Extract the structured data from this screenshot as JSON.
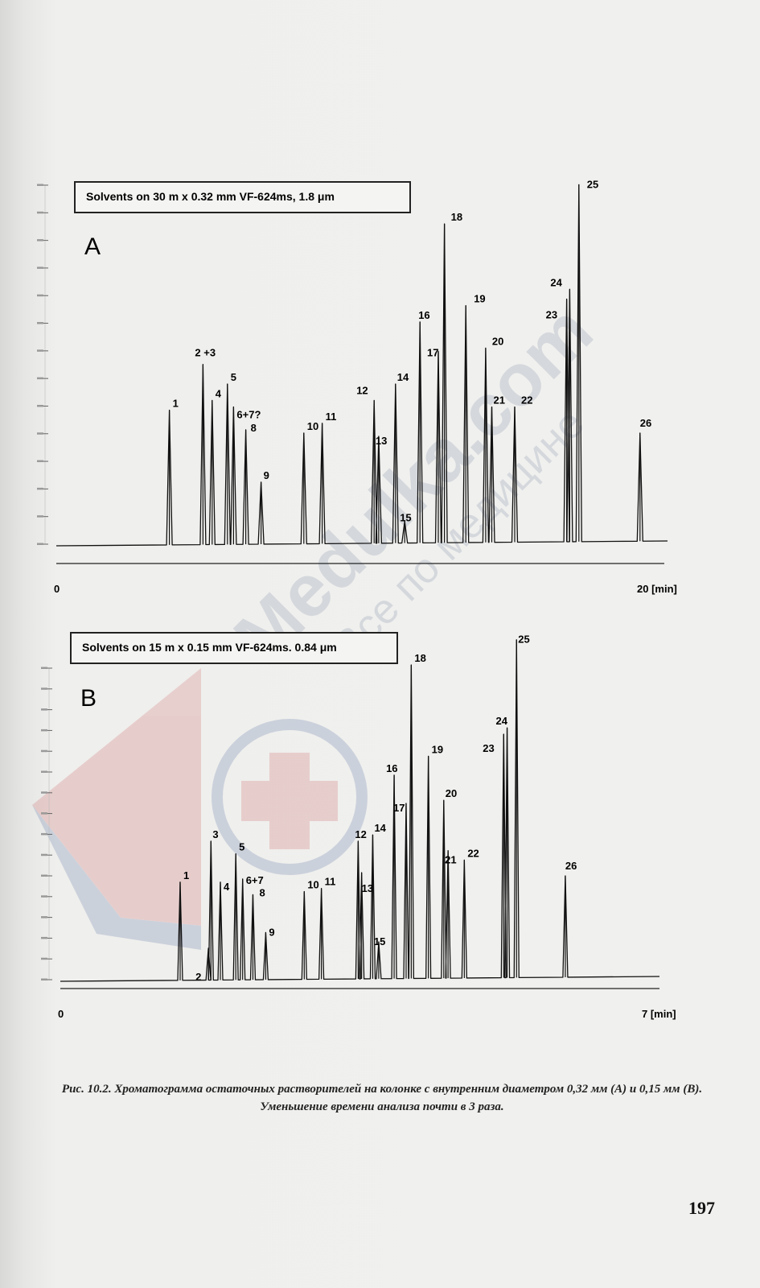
{
  "page": {
    "caption": "Рис. 10.2. Хроматограмма остаточных растворителей на колонке с внутренним диаметром 0,32 мм (А) и 0,15 мм (В). Уменьшение времени анализа почти в 3 раза.",
    "page_number": "197",
    "watermark_text_1": "Medulka.com",
    "watermark_text_2": "Все по медицине"
  },
  "chart_data": [
    {
      "type": "line",
      "panel": "A",
      "title": "Solvents on 30 m x 0.32 mm VF-624ms, 1.8 μm",
      "x_start_label": "0",
      "x_end_label": "20  [min]",
      "xlim": [
        0,
        20
      ],
      "ylim": [
        0,
        1
      ],
      "peaks": [
        {
          "label": "1",
          "x": 3.7,
          "y": 0.41
        },
        {
          "label": "2 +3",
          "x": 4.8,
          "y": 0.55
        },
        {
          "label": "4",
          "x": 5.1,
          "y": 0.44
        },
        {
          "label": "5",
          "x": 5.6,
          "y": 0.49
        },
        {
          "label": "6+7?",
          "x": 5.8,
          "y": 0.42
        },
        {
          "label": "8",
          "x": 6.2,
          "y": 0.35
        },
        {
          "label": "9",
          "x": 6.7,
          "y": 0.19
        },
        {
          "label": "10",
          "x": 8.1,
          "y": 0.34
        },
        {
          "label": "11",
          "x": 8.7,
          "y": 0.37
        },
        {
          "label": "12",
          "x": 10.4,
          "y": 0.44
        },
        {
          "label": "13",
          "x": 10.55,
          "y": 0.33
        },
        {
          "label": "14",
          "x": 11.1,
          "y": 0.49
        },
        {
          "label": "15",
          "x": 11.4,
          "y": 0.07
        },
        {
          "label": "16",
          "x": 11.9,
          "y": 0.68
        },
        {
          "label": "17",
          "x": 12.5,
          "y": 0.59
        },
        {
          "label": "18",
          "x": 12.7,
          "y": 0.98
        },
        {
          "label": "19",
          "x": 13.4,
          "y": 0.73
        },
        {
          "label": "20",
          "x": 14.05,
          "y": 0.6
        },
        {
          "label": "21",
          "x": 14.25,
          "y": 0.42
        },
        {
          "label": "22",
          "x": 15.0,
          "y": 0.42
        },
        {
          "label": "23",
          "x": 16.7,
          "y": 0.75
        },
        {
          "label": "24",
          "x": 16.8,
          "y": 0.78
        },
        {
          "label": "25",
          "x": 17.1,
          "y": 1.1
        },
        {
          "label": "26",
          "x": 19.1,
          "y": 0.34
        }
      ]
    },
    {
      "type": "line",
      "panel": "B",
      "title": "Solvents on 15 m x 0.15 mm VF-624ms. 0.84 μm",
      "x_start_label": "0",
      "x_end_label": "7  [min]",
      "xlim": [
        0,
        7
      ],
      "ylim": [
        0,
        1
      ],
      "peaks": [
        {
          "label": "1",
          "x": 1.4,
          "y": 0.31
        },
        {
          "label": "2",
          "x": 1.73,
          "y": 0.1
        },
        {
          "label": "3",
          "x": 1.76,
          "y": 0.44
        },
        {
          "label": "4",
          "x": 1.87,
          "y": 0.31
        },
        {
          "label": "5",
          "x": 2.05,
          "y": 0.4
        },
        {
          "label": "6+7",
          "x": 2.13,
          "y": 0.32
        },
        {
          "label": "8",
          "x": 2.25,
          "y": 0.27
        },
        {
          "label": "9",
          "x": 2.4,
          "y": 0.15
        },
        {
          "label": "10",
          "x": 2.85,
          "y": 0.28
        },
        {
          "label": "11",
          "x": 3.05,
          "y": 0.29
        },
        {
          "label": "12",
          "x": 3.48,
          "y": 0.44
        },
        {
          "label": "13",
          "x": 3.52,
          "y": 0.34
        },
        {
          "label": "14",
          "x": 3.65,
          "y": 0.46
        },
        {
          "label": "15",
          "x": 3.72,
          "y": 0.12
        },
        {
          "label": "16",
          "x": 3.9,
          "y": 0.65
        },
        {
          "label": "17",
          "x": 4.04,
          "y": 0.56
        },
        {
          "label": "18",
          "x": 4.1,
          "y": 1.0
        },
        {
          "label": "19",
          "x": 4.3,
          "y": 0.71
        },
        {
          "label": "20",
          "x": 4.48,
          "y": 0.57
        },
        {
          "label": "21",
          "x": 4.53,
          "y": 0.41
        },
        {
          "label": "22",
          "x": 4.72,
          "y": 0.38
        },
        {
          "label": "23",
          "x": 5.18,
          "y": 0.78
        },
        {
          "label": "24",
          "x": 5.22,
          "y": 0.8
        },
        {
          "label": "25",
          "x": 5.33,
          "y": 1.08
        },
        {
          "label": "26",
          "x": 5.9,
          "y": 0.33
        }
      ]
    }
  ]
}
